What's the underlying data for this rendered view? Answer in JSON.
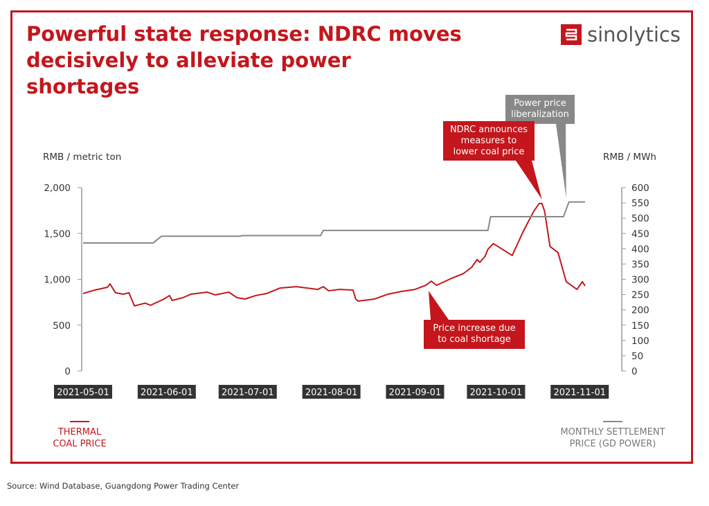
{
  "title": "Powerful state response: NDRC moves decisively to alleviate power shortages",
  "brand": "sinolytics",
  "source": "Source: Wind Database, Guangdong Power Trading Center",
  "colors": {
    "coal": "#c4161c",
    "power": "#888888",
    "date_label_bg": "#333333"
  },
  "chart_data": {
    "type": "line",
    "left_axis": {
      "label": "RMB / metric ton",
      "ticks": [
        "0",
        "500",
        "1,000",
        "1,500",
        "2,000"
      ],
      "range": [
        0,
        2000
      ]
    },
    "right_axis": {
      "label": "RMB / MWh",
      "ticks": [
        "0",
        "50",
        "100",
        "150",
        "200",
        "250",
        "300",
        "350",
        "400",
        "450",
        "500",
        "550",
        "600"
      ],
      "range": [
        0,
        600
      ]
    },
    "x_axis": {
      "unit": "days since 2021-05-01",
      "range": [
        0,
        186
      ],
      "ticks": [
        {
          "label": "2021-05-01",
          "day": 0
        },
        {
          "label": "2021-06-01",
          "day": 31
        },
        {
          "label": "2021-07-01",
          "day": 61
        },
        {
          "label": "2021-08-01",
          "day": 92
        },
        {
          "label": "2021-09-01",
          "day": 123
        },
        {
          "label": "2021-10-01",
          "day": 153
        },
        {
          "label": "2021-11-01",
          "day": 184
        }
      ]
    },
    "series": [
      {
        "name": "THERMAL COAL PRICE",
        "axis": "left",
        "color": "#c4161c",
        "points": [
          [
            0,
            845
          ],
          [
            4,
            880
          ],
          [
            9,
            913
          ],
          [
            10,
            950
          ],
          [
            12,
            853
          ],
          [
            15,
            838
          ],
          [
            17,
            853
          ],
          [
            19,
            710
          ],
          [
            23,
            740
          ],
          [
            25,
            717
          ],
          [
            30,
            785
          ],
          [
            32,
            823
          ],
          [
            33,
            770
          ],
          [
            37,
            800
          ],
          [
            40,
            838
          ],
          [
            44,
            853
          ],
          [
            46,
            860
          ],
          [
            49,
            830
          ],
          [
            54,
            860
          ],
          [
            57,
            800
          ],
          [
            60,
            785
          ],
          [
            64,
            823
          ],
          [
            68,
            845
          ],
          [
            73,
            905
          ],
          [
            79,
            920
          ],
          [
            87,
            890
          ],
          [
            89,
            920
          ],
          [
            91,
            875
          ],
          [
            95,
            890
          ],
          [
            100,
            883
          ],
          [
            101,
            785
          ],
          [
            102,
            762
          ],
          [
            108,
            785
          ],
          [
            113,
            838
          ],
          [
            118,
            868
          ],
          [
            123,
            890
          ],
          [
            127,
            935
          ],
          [
            129,
            980
          ],
          [
            131,
            935
          ],
          [
            136,
            1004
          ],
          [
            141,
            1064
          ],
          [
            144,
            1132
          ],
          [
            146,
            1215
          ],
          [
            147,
            1185
          ],
          [
            149,
            1253
          ],
          [
            150,
            1328
          ],
          [
            152,
            1389
          ],
          [
            159,
            1260
          ],
          [
            163,
            1517
          ],
          [
            167,
            1743
          ],
          [
            169,
            1826
          ],
          [
            170,
            1826
          ],
          [
            171,
            1743
          ],
          [
            173,
            1358
          ],
          [
            176,
            1290
          ],
          [
            179,
            974
          ],
          [
            183,
            890
          ],
          [
            185,
            974
          ],
          [
            186,
            928
          ]
        ]
      },
      {
        "name": "MONTHLY SETTLEMENT PRICE (GD POWER)",
        "axis": "right",
        "color": "#888888",
        "points": [
          [
            0,
            419
          ],
          [
            26,
            419
          ],
          [
            29,
            441
          ],
          [
            58,
            441
          ],
          [
            59,
            443
          ],
          [
            88,
            443
          ],
          [
            89,
            460
          ],
          [
            150,
            460
          ],
          [
            151,
            505
          ],
          [
            178,
            505
          ],
          [
            180,
            553
          ],
          [
            186,
            553
          ]
        ]
      }
    ],
    "legend": {
      "coal": "THERMAL COAL PRICE",
      "power": "MONTHLY SETTLEMENT PRICE (GD POWER)",
      "placement": "bottom"
    },
    "annotations": [
      {
        "text": "Power price liberalization",
        "lines": [
          "Power price",
          "liberalization"
        ],
        "color": "#888888",
        "day": 179,
        "value_right": 553
      },
      {
        "text": "NDRC announces measures to lower coal price",
        "lines": [
          "NDRC announces",
          "measures to",
          "lower coal price"
        ],
        "color": "#c4161c",
        "day": 170,
        "value_left": 1826
      },
      {
        "text": "Price increase due to coal shortage",
        "lines": [
          "Price increase due",
          "to coal shortage"
        ],
        "color": "#c4161c",
        "day": 128,
        "value_left": 935
      }
    ]
  }
}
